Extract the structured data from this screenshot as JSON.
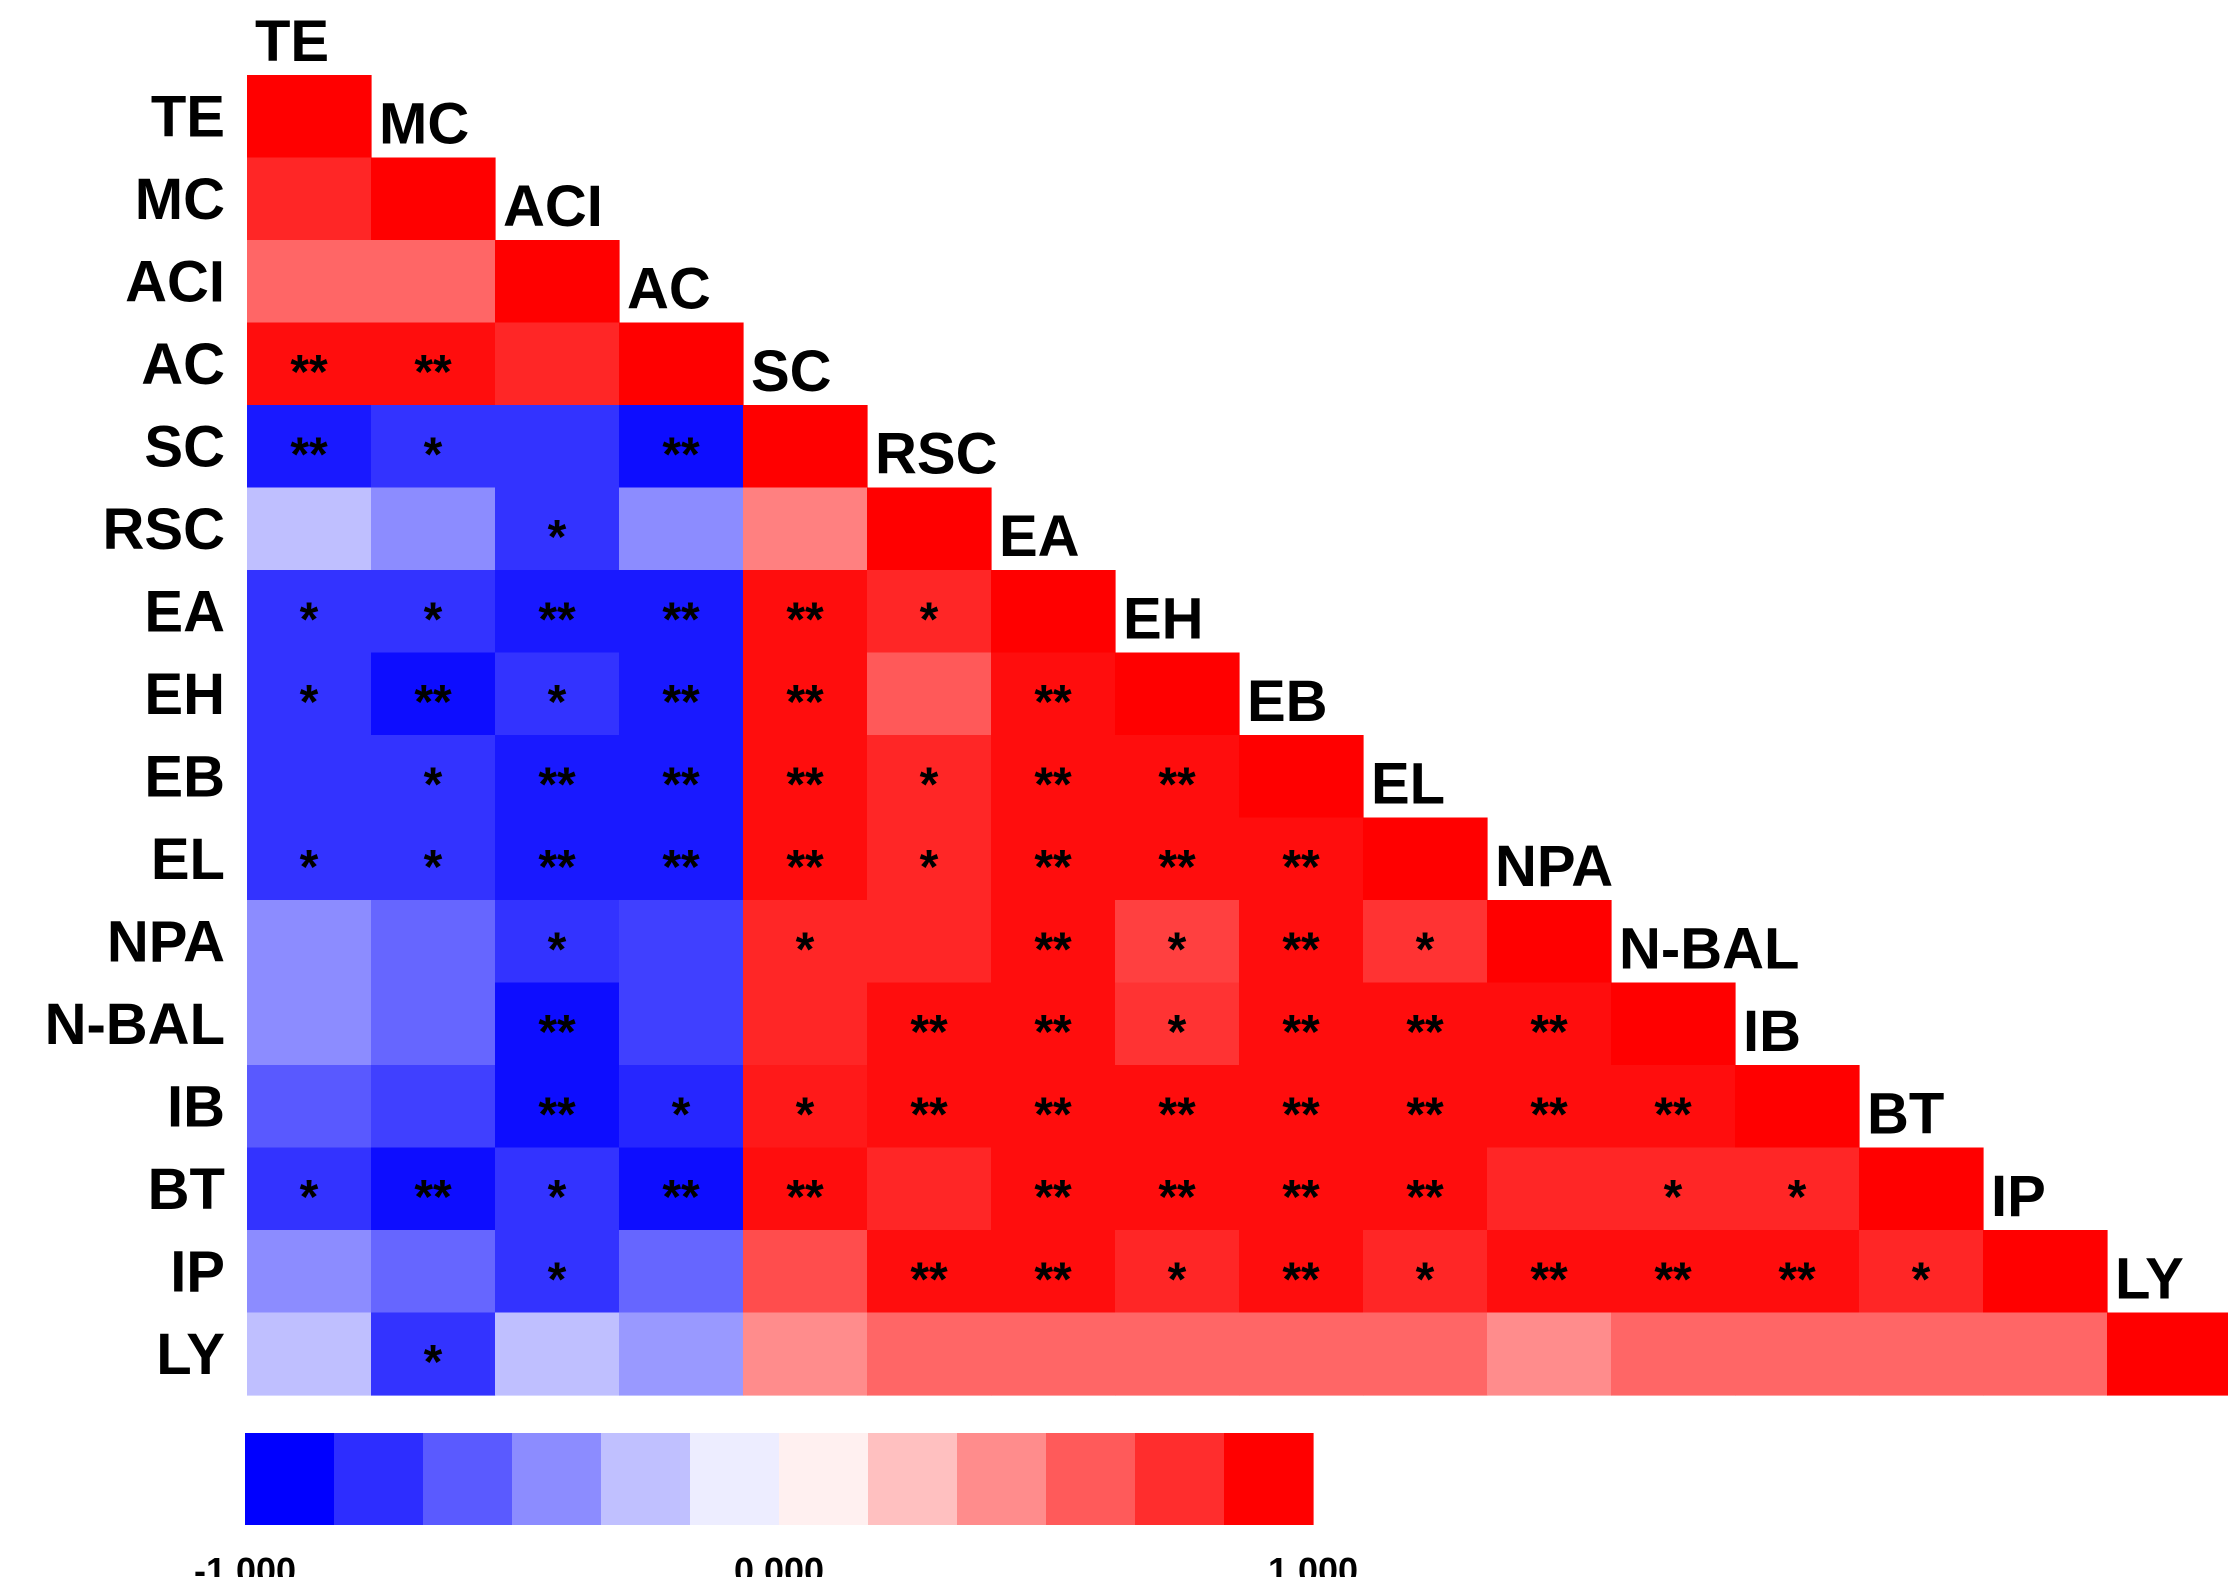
{
  "chart_data": {
    "type": "heatmap",
    "variables": [
      "TE",
      "MC",
      "ACI",
      "AC",
      "SC",
      "RSC",
      "EA",
      "EH",
      "EB",
      "EL",
      "NPA",
      "N-BAL",
      "IB",
      "BT",
      "IP",
      "LY"
    ],
    "matrix_lower_triangle": [
      [
        1.0
      ],
      [
        0.85,
        1.0
      ],
      [
        0.6,
        0.6,
        1.0
      ],
      [
        0.95,
        0.95,
        0.85,
        1.0
      ],
      [
        -0.9,
        -0.8,
        -0.8,
        -0.95,
        1.0
      ],
      [
        -0.25,
        -0.45,
        -0.8,
        -0.45,
        0.5,
        1.0
      ],
      [
        -0.8,
        -0.8,
        -0.9,
        -0.9,
        0.95,
        0.85,
        1.0
      ],
      [
        -0.8,
        -0.95,
        -0.8,
        -0.9,
        0.95,
        0.65,
        0.95,
        1.0
      ],
      [
        -0.8,
        -0.8,
        -0.9,
        -0.9,
        0.95,
        0.85,
        0.95,
        0.95,
        1.0
      ],
      [
        -0.8,
        -0.8,
        -0.9,
        -0.9,
        0.95,
        0.85,
        0.95,
        0.95,
        0.95,
        1.0
      ],
      [
        -0.45,
        -0.6,
        -0.8,
        -0.75,
        0.85,
        0.85,
        0.95,
        0.75,
        0.95,
        0.8,
        1.0
      ],
      [
        -0.45,
        -0.6,
        -0.95,
        -0.75,
        0.85,
        0.95,
        0.95,
        0.8,
        0.95,
        0.95,
        0.95,
        1.0
      ],
      [
        -0.65,
        -0.75,
        -0.95,
        -0.85,
        0.9,
        0.95,
        0.95,
        0.95,
        0.95,
        0.95,
        0.95,
        0.95,
        1.0
      ],
      [
        -0.8,
        -0.95,
        -0.8,
        -0.95,
        0.95,
        0.85,
        0.95,
        0.95,
        0.95,
        0.95,
        0.85,
        0.85,
        0.85,
        1.0
      ],
      [
        -0.45,
        -0.6,
        -0.8,
        -0.6,
        0.7,
        0.95,
        0.95,
        0.85,
        0.95,
        0.85,
        0.95,
        0.95,
        0.95,
        0.85,
        1.0
      ],
      [
        -0.25,
        -0.8,
        -0.25,
        -0.4,
        0.45,
        0.6,
        0.6,
        0.6,
        0.6,
        0.6,
        0.45,
        0.6,
        0.6,
        0.6,
        0.6,
        1.0
      ]
    ],
    "significance_lower_triangle": [
      [
        ""
      ],
      [
        "",
        ""
      ],
      [
        "",
        "",
        ""
      ],
      [
        "**",
        "**",
        "",
        ""
      ],
      [
        "**",
        "*",
        "",
        "**",
        ""
      ],
      [
        "",
        "",
        "*",
        "",
        "",
        ""
      ],
      [
        "*",
        "*",
        "**",
        "**",
        "**",
        "*",
        ""
      ],
      [
        "*",
        "**",
        "*",
        "**",
        "**",
        "",
        "**",
        ""
      ],
      [
        "",
        "*",
        "**",
        "**",
        "**",
        "*",
        "**",
        "**",
        ""
      ],
      [
        "*",
        "*",
        "**",
        "**",
        "**",
        "*",
        "**",
        "**",
        "**",
        ""
      ],
      [
        "",
        "",
        "*",
        "",
        "*",
        "",
        "**",
        "*",
        "**",
        "*",
        ""
      ],
      [
        "",
        "",
        "**",
        "",
        "",
        "**",
        "**",
        "*",
        "**",
        "**",
        "**",
        ""
      ],
      [
        "",
        "",
        "**",
        "*",
        "*",
        "**",
        "**",
        "**",
        "**",
        "**",
        "**",
        "**",
        ""
      ],
      [
        "*",
        "**",
        "*",
        "**",
        "**",
        "",
        "**",
        "**",
        "**",
        "**",
        "",
        "*",
        "*",
        ""
      ],
      [
        "",
        "",
        "*",
        "",
        "",
        "**",
        "**",
        "*",
        "**",
        "*",
        "**",
        "**",
        "**",
        "*",
        ""
      ],
      [
        "",
        "*",
        "",
        "",
        "",
        "",
        "",
        "",
        "",
        "",
        "",
        "",
        "",
        "",
        "",
        ""
      ]
    ],
    "colorbar": {
      "min": -1.0,
      "max": 1.0,
      "tick_labels": [
        "-1.000",
        "0.000",
        "1.000"
      ],
      "colors": [
        "#0000ff",
        "#2d2dff",
        "#5a5aff",
        "#8c8cff",
        "#c0c0ff",
        "#ededff",
        "#fff0f0",
        "#ffc0c0",
        "#ff8c8c",
        "#ff5a5a",
        "#ff2d2d",
        "#ff0000"
      ]
    }
  }
}
